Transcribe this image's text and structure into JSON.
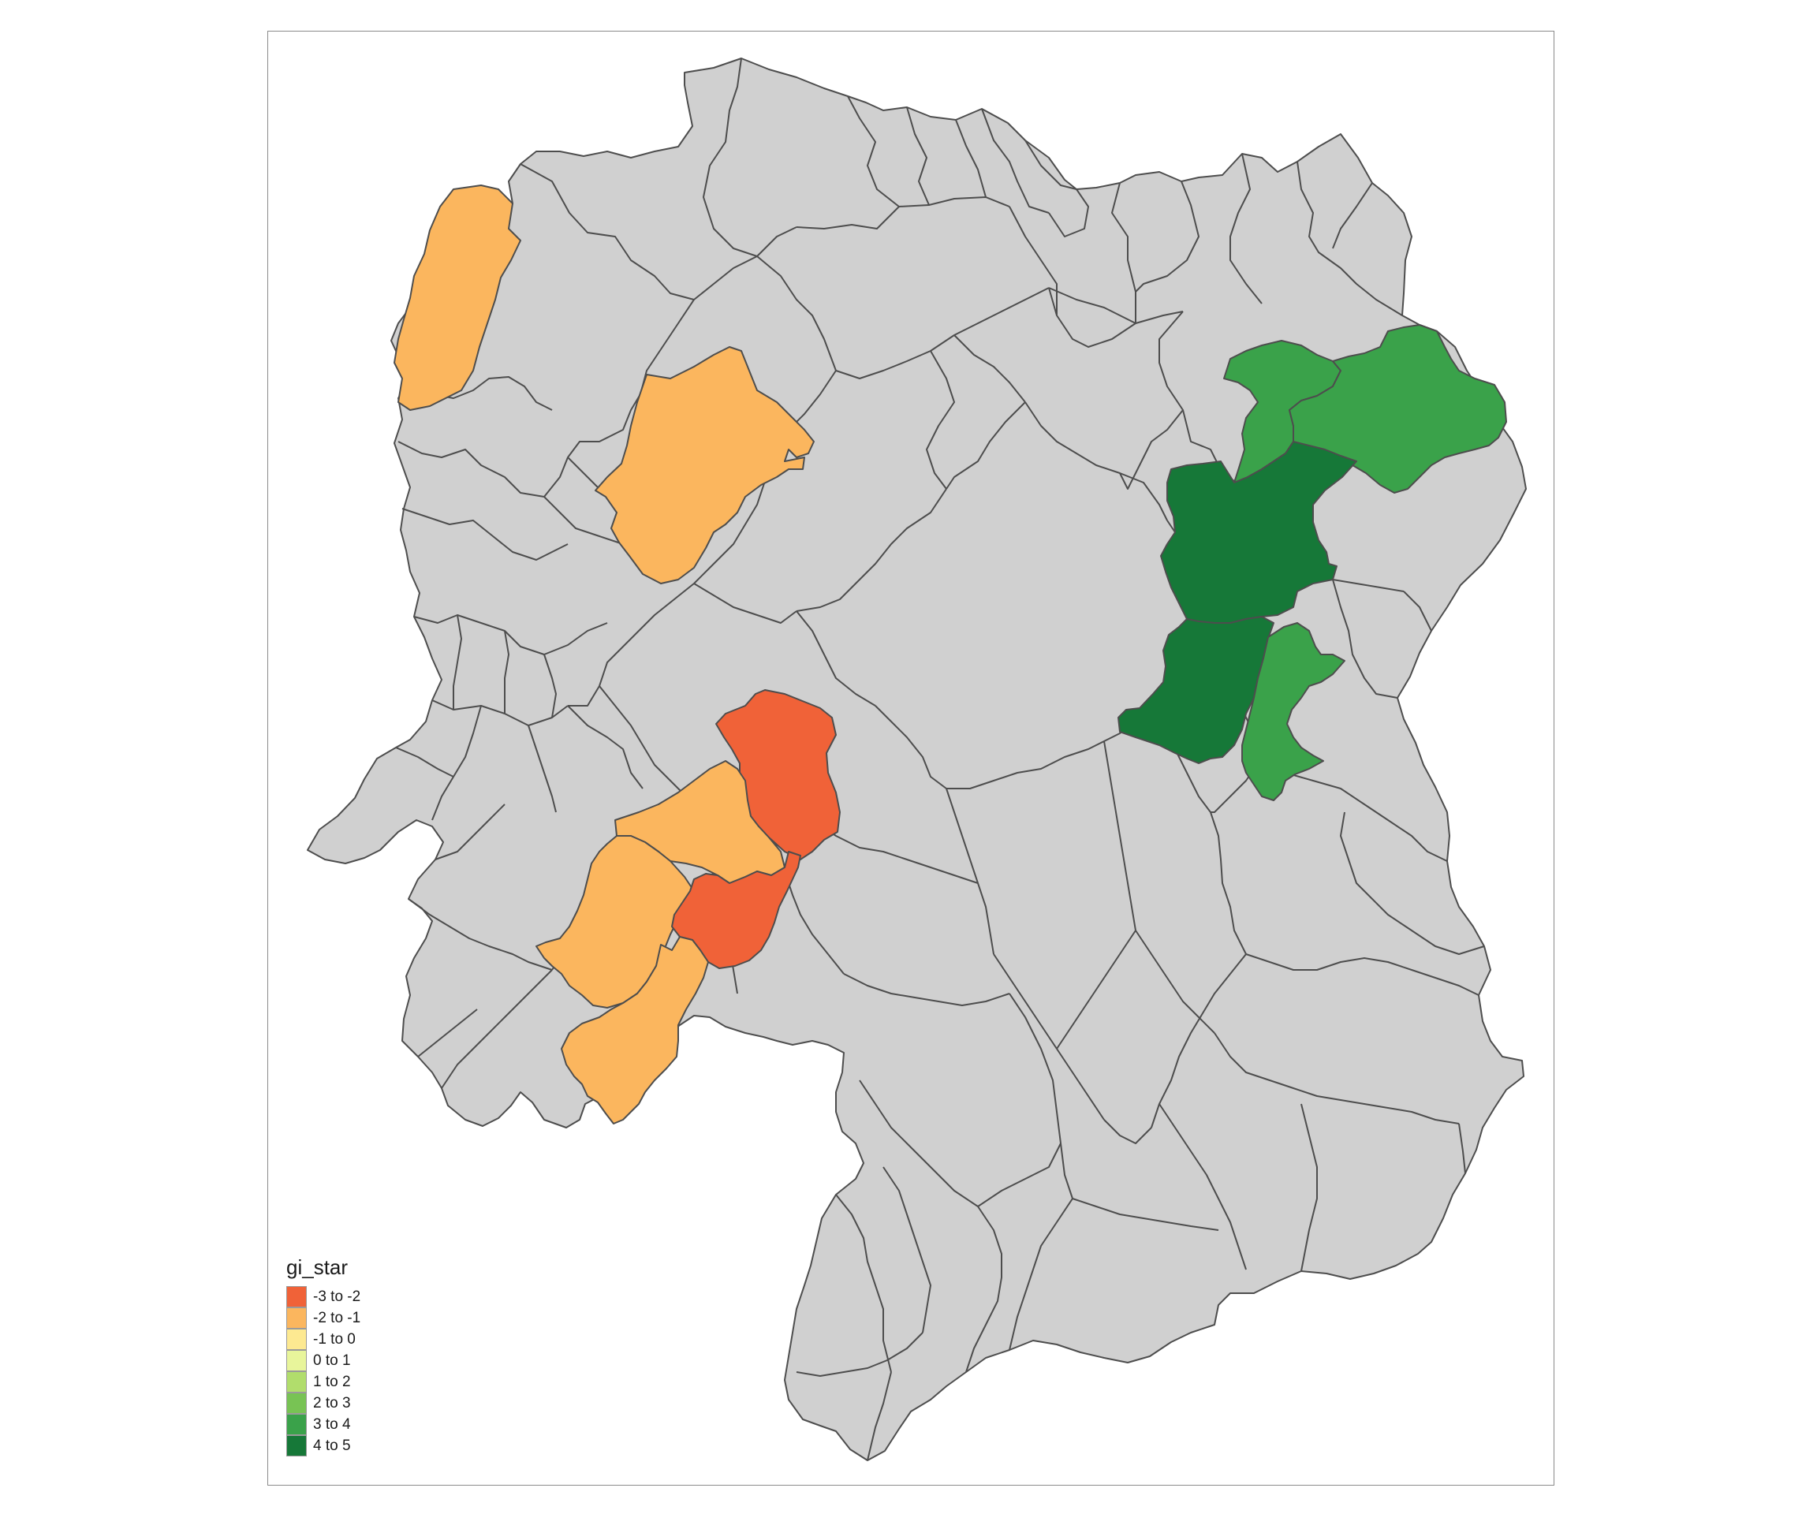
{
  "legend": {
    "title": "gi_star",
    "items": [
      {
        "label": "-3 to -2",
        "color": "#f06238"
      },
      {
        "label": "-2 to -1",
        "color": "#fbb65e"
      },
      {
        "label": "-1 to 0",
        "color": "#fde991"
      },
      {
        "label": "0 to 1",
        "color": "#e8f59b"
      },
      {
        "label": "1 to 2",
        "color": "#b1dd6c"
      },
      {
        "label": "2 to 3",
        "color": "#78c354"
      },
      {
        "label": "3 to 4",
        "color": "#3aa24a"
      },
      {
        "label": "4 to 5",
        "color": "#167838"
      }
    ]
  },
  "map": {
    "no_data_color": "#d0d0d0",
    "highlighted_regions": [
      {
        "class": "-2 to -1",
        "color": "#fbb65e"
      },
      {
        "class": "-2 to -1",
        "color": "#fbb65e"
      },
      {
        "class": "-3 to -2",
        "color": "#f06238"
      },
      {
        "class": "-2 to -1",
        "color": "#fbb65e"
      },
      {
        "class": "-2 to -1",
        "color": "#fbb65e"
      },
      {
        "class": "-3 to -2",
        "color": "#f06238"
      },
      {
        "class": "-2 to -1",
        "color": "#fbb65e"
      },
      {
        "class": "3 to 4",
        "color": "#3aa24a"
      },
      {
        "class": "3 to 4",
        "color": "#3aa24a"
      },
      {
        "class": "4 to 5",
        "color": "#167838"
      },
      {
        "class": "4 to 5",
        "color": "#167838"
      },
      {
        "class": "3 to 4",
        "color": "#3aa24a"
      }
    ]
  }
}
